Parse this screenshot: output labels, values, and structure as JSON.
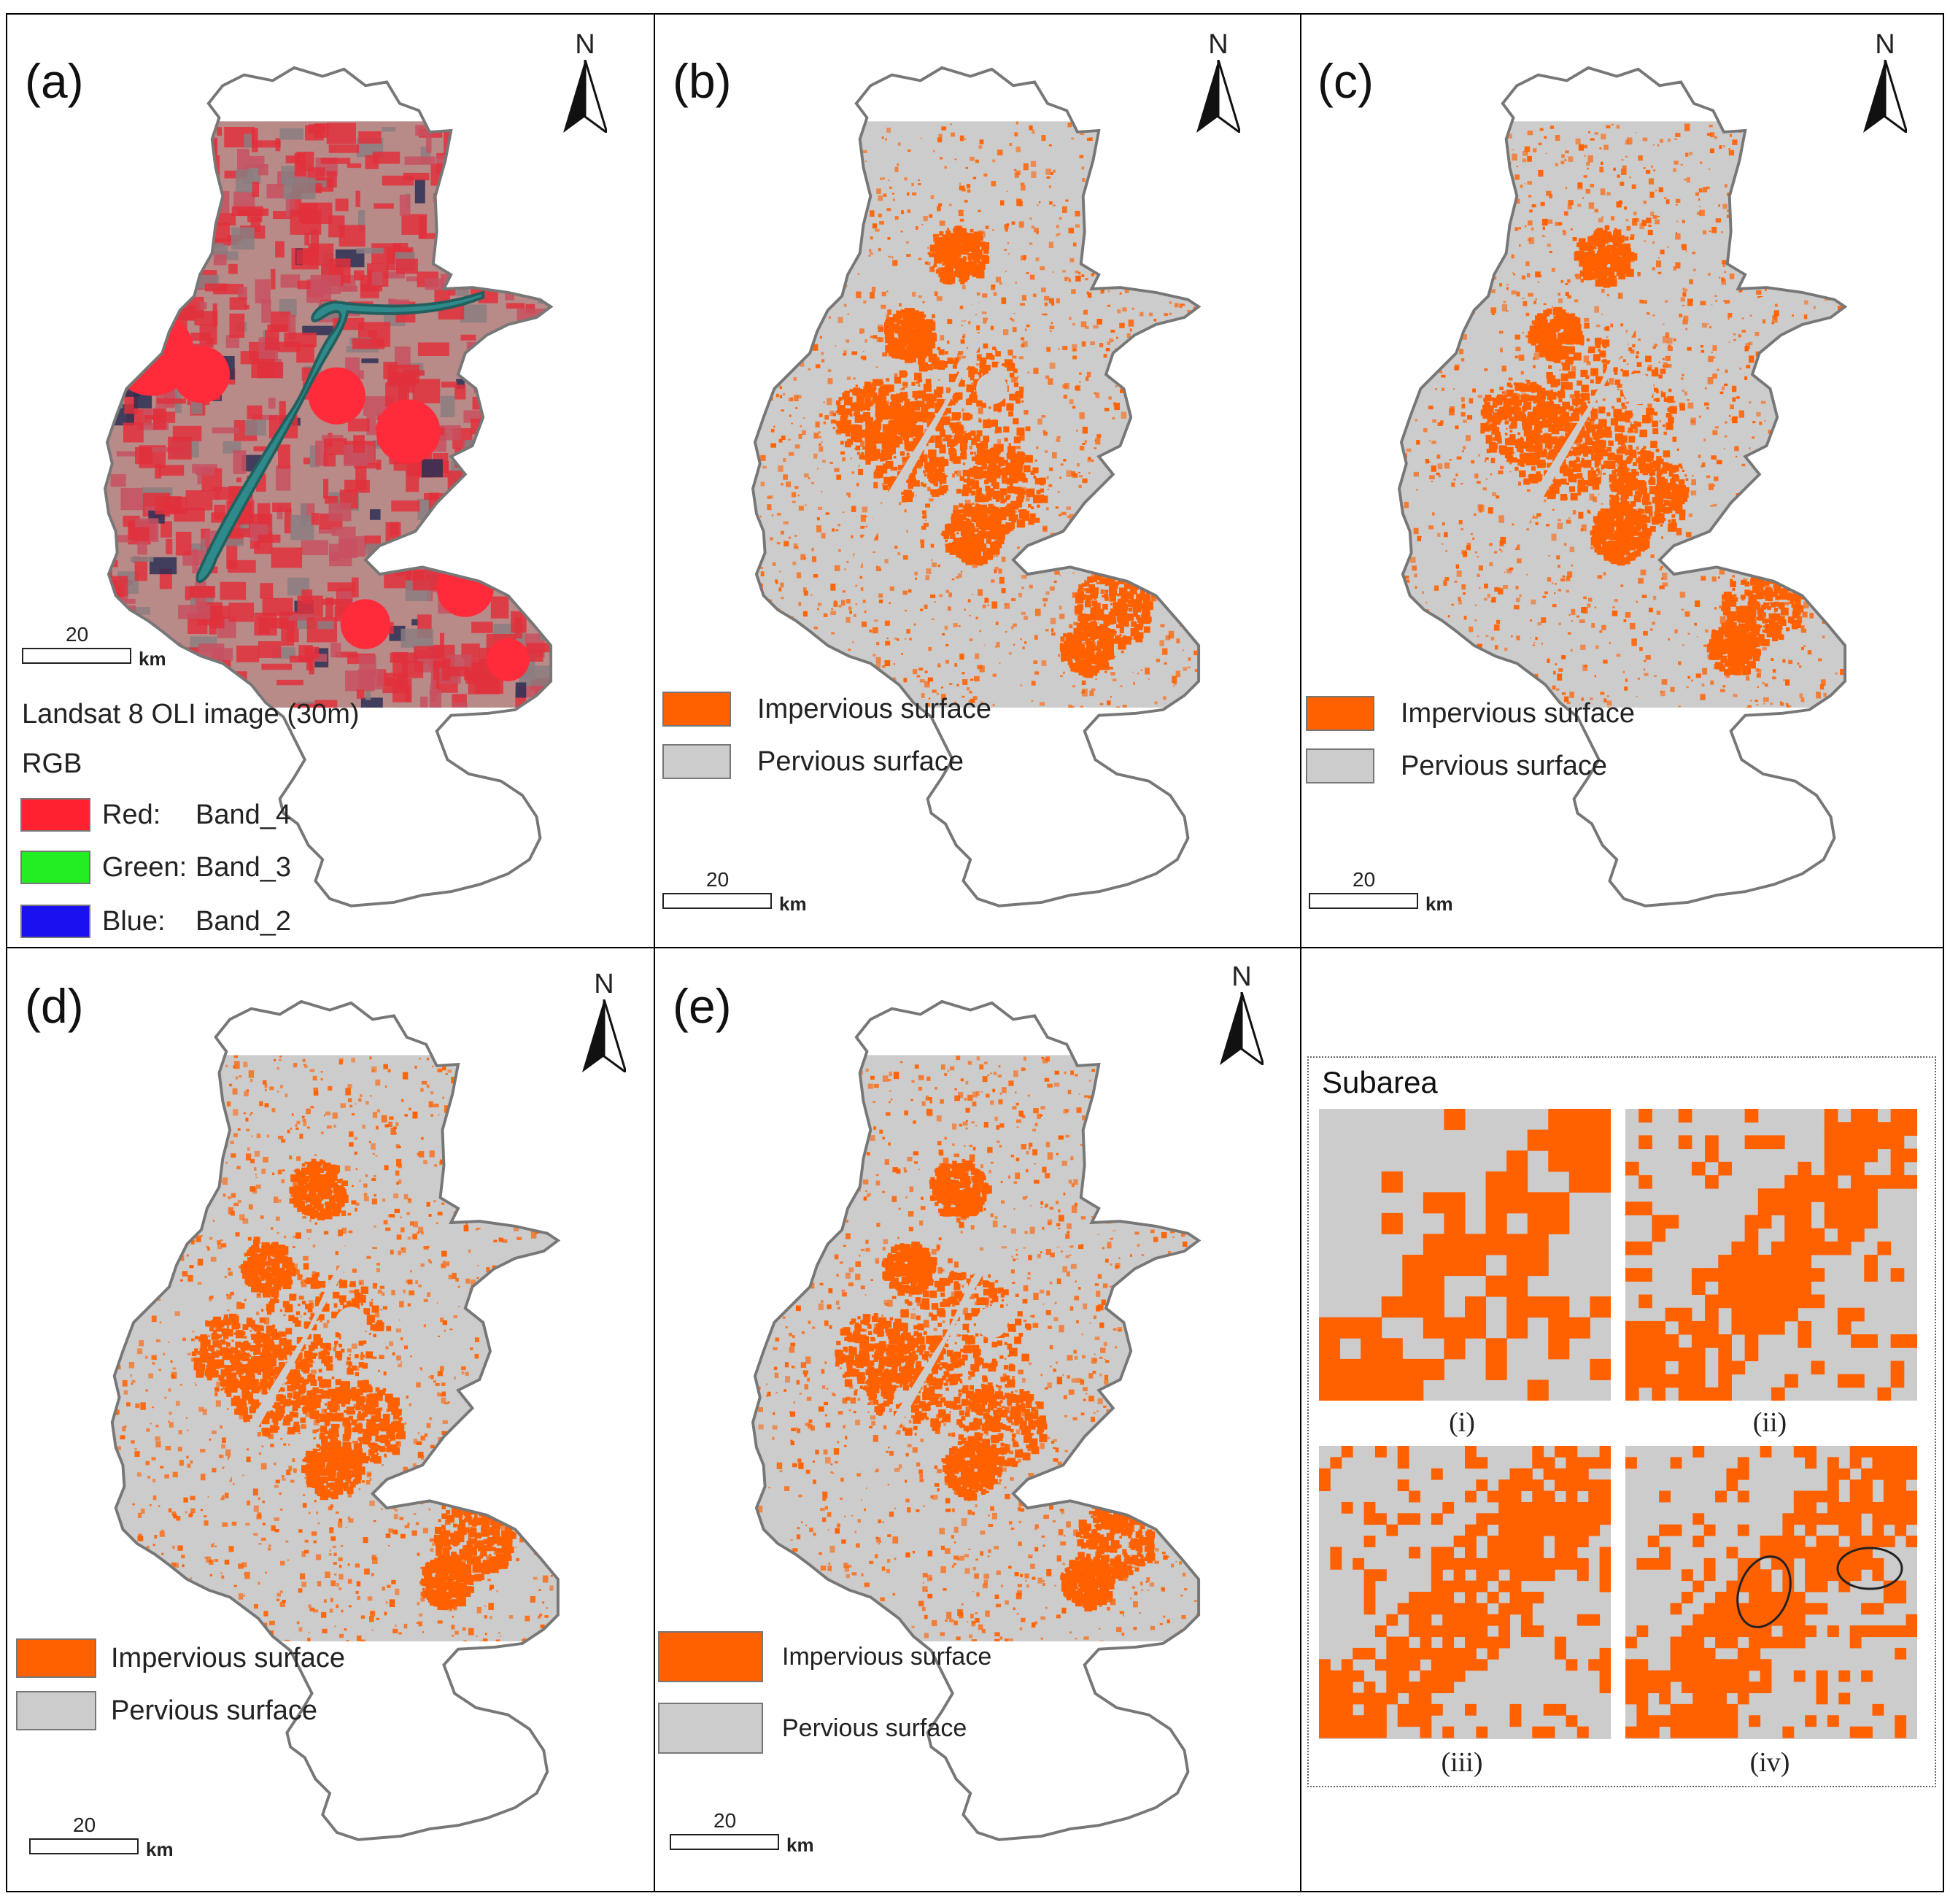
{
  "colors": {
    "impervious": "#ff6000",
    "pervious": "#cccccc",
    "red_band": "#ff2030",
    "green_band": "#22ee22",
    "blue_band": "#1a10f0",
    "false_color_base": "#e0303c",
    "river": "#2f8b8b",
    "outline": "#777777"
  },
  "icons": {
    "north_arrow": "north-arrow-icon"
  },
  "north_label": "N",
  "scale": {
    "distance": "20",
    "unit": "km"
  },
  "panels": [
    {
      "label": "(a)",
      "kind": "false-color-composite",
      "legend_title": "Landsat 8 OLI image (30m)",
      "legend_subtitle": "RGB",
      "legend_items": [
        {
          "name": "Red:",
          "band": "Band_4",
          "color_key": "red_band"
        },
        {
          "name": "Green:",
          "band": "Band_3",
          "color_key": "green_band"
        },
        {
          "name": "Blue:",
          "band": "Band_2",
          "color_key": "blue_band"
        }
      ]
    },
    {
      "label": "(b)",
      "kind": "classified",
      "legend_items": [
        {
          "label": "Impervious surface",
          "color_key": "impervious"
        },
        {
          "label": "Pervious surface",
          "color_key": "pervious"
        }
      ]
    },
    {
      "label": "(c)",
      "kind": "classified",
      "legend_items": [
        {
          "label": "Impervious surface",
          "color_key": "impervious"
        },
        {
          "label": "Pervious surface",
          "color_key": "pervious"
        }
      ]
    },
    {
      "label": "(d)",
      "kind": "classified",
      "legend_items": [
        {
          "label": "Impervious surface",
          "color_key": "impervious"
        },
        {
          "label": "Pervious surface",
          "color_key": "pervious"
        }
      ]
    },
    {
      "label": "(e)",
      "kind": "classified",
      "legend_items": [
        {
          "label": "Impervious surface",
          "color_key": "impervious"
        },
        {
          "label": "Pervious surface",
          "color_key": "pervious"
        }
      ]
    }
  ],
  "subarea": {
    "title": "Subarea",
    "captions": [
      "(i)",
      "(ii)",
      "(iii)",
      "(iv)"
    ],
    "highlight_note": "ellipses mark differences in (iv)"
  }
}
